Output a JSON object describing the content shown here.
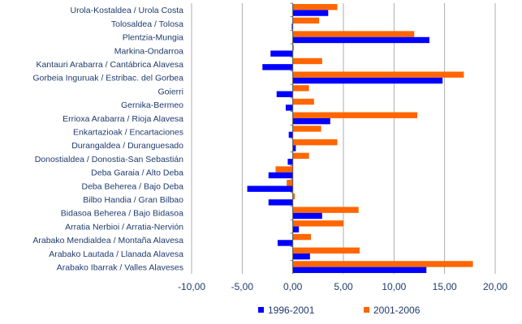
{
  "chart_data": {
    "type": "bar",
    "orientation": "horizontal",
    "categories": [
      "Urola-Kostaldea  /  Urola Costa",
      "Tolosaldea  /  Tolosa",
      "Plentzia-Mungia",
      "Markina-Ondarroa",
      "Kantauri Arabarra  /  Cantábrica Alavesa",
      "Gorbeia Inguruak  /  Estribac. del Gorbea",
      "Goierri",
      "Gernika-Bermeo",
      "Errioxa Arabarra  /  Rioja Alavesa",
      "Enkartazioak  /  Encartaciones",
      "Durangaldea  /  Duranguesado",
      "Donostialdea  /  Donostia-San Sebastián",
      "Deba Garaia  /  Alto Deba",
      "Deba Beherea  /  Bajo Deba",
      "Bilbo Handia  /  Gran Bilbao",
      "Bidasoa Beherea  /  Bajo Bidasoa",
      "Arratia Nerbioi  /  Arratia-Nervión",
      "Arabako Mendialdea  /  Montaña Alavesa",
      "Arabako Lautada  /  Llanada Alavesa",
      "Arabako Ibarrak  /  Valles Alaveses"
    ],
    "series": [
      {
        "name": "1996-2001",
        "color": "#0000ff",
        "values": [
          3.5,
          -0.1,
          13.5,
          -2.2,
          -3.0,
          14.8,
          -1.6,
          -0.7,
          3.7,
          -0.4,
          0.3,
          -0.5,
          -2.4,
          -4.5,
          -2.4,
          2.9,
          0.6,
          -1.5,
          1.7,
          13.2
        ]
      },
      {
        "name": "2001-2006",
        "color": "#ff6600",
        "values": [
          4.4,
          2.6,
          12.0,
          0.1,
          2.9,
          16.9,
          1.6,
          2.1,
          12.3,
          2.8,
          4.4,
          1.6,
          -1.7,
          -0.6,
          0.2,
          6.5,
          5.0,
          1.8,
          6.6,
          17.8
        ]
      }
    ],
    "xlim": [
      -10,
      20
    ],
    "xticks": [
      "-10,00",
      "-5,00",
      "0,00",
      "5,00",
      "10,00",
      "15,00",
      "20,00"
    ],
    "grid": "vertical",
    "legend": "bottom"
  }
}
